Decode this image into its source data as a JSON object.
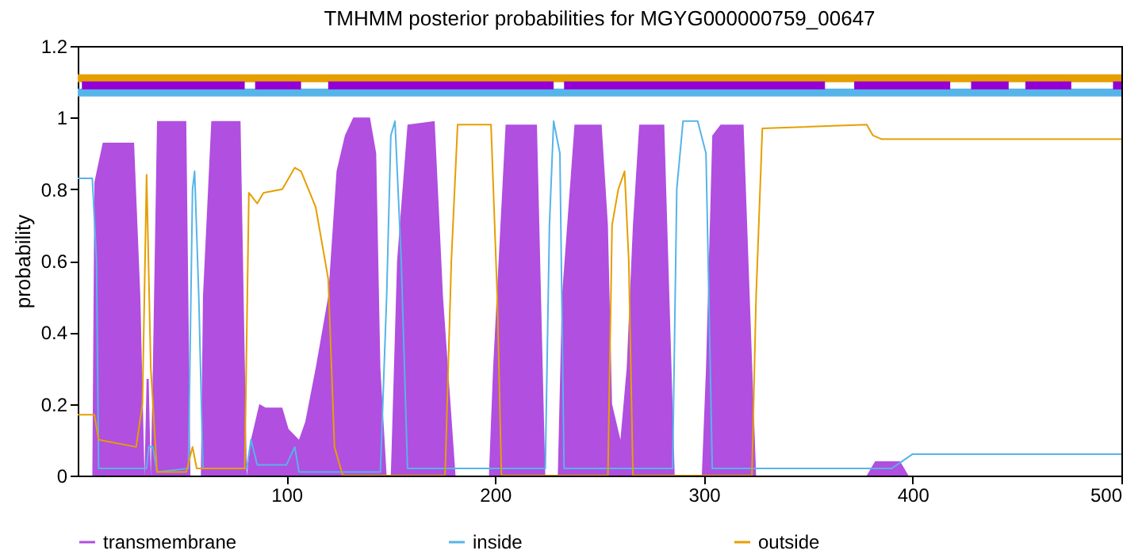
{
  "chart_data": {
    "type": "line",
    "title": "TMHMM posterior probabilities for MGYG000000759_00647",
    "ylabel": "probability",
    "xlim": [
      0,
      500
    ],
    "xticks": [
      100,
      200,
      300,
      400,
      500
    ],
    "ylim": [
      0,
      1.2
    ],
    "yticks": [
      0,
      0.2,
      0.4,
      0.6,
      0.8,
      1,
      1.2
    ],
    "grid": false,
    "legend": "bottom",
    "series": [
      {
        "name": "transmembrane",
        "type": "area",
        "color": "#b04fe0",
        "x": [
          0,
          7,
          8,
          12,
          27,
          30,
          32,
          33,
          34,
          35,
          36,
          38,
          52,
          54,
          59,
          60,
          64,
          78,
          81,
          83,
          87,
          90,
          98,
          101,
          106,
          109,
          114,
          120,
          124,
          128,
          132,
          140,
          143,
          145,
          148,
          150,
          153,
          158,
          171,
          175,
          181,
          197,
          199,
          205,
          220,
          224,
          230,
          232,
          238,
          251,
          254,
          256,
          260,
          263,
          266,
          269,
          281,
          286,
          299,
          301,
          304,
          308,
          319,
          325,
          378,
          382,
          394,
          398,
          500
        ],
        "values": [
          0,
          0,
          0.82,
          0.93,
          0.93,
          0.5,
          0,
          0.27,
          0.27,
          0,
          0.3,
          0.99,
          0.99,
          0,
          0,
          0.5,
          0.99,
          0.99,
          0,
          0.1,
          0.2,
          0.19,
          0.19,
          0.13,
          0.1,
          0.15,
          0.3,
          0.5,
          0.85,
          0.95,
          1,
          1,
          0.9,
          0.3,
          0,
          0,
          0.6,
          0.98,
          0.99,
          0.5,
          0,
          0,
          0.3,
          0.98,
          0.98,
          0,
          0,
          0.5,
          0.98,
          0.98,
          0.7,
          0.2,
          0.1,
          0.3,
          0.7,
          0.98,
          0.98,
          0,
          0,
          0.3,
          0.95,
          0.98,
          0.98,
          0,
          0,
          0.04,
          0.04,
          0,
          0
        ]
      },
      {
        "name": "inside",
        "color": "#56b4e9",
        "x": [
          0,
          7,
          9,
          10,
          33,
          34,
          36,
          38,
          53,
          55,
          56,
          58,
          60,
          81,
          83,
          86,
          100,
          104,
          106,
          145,
          148,
          150,
          152,
          155,
          158,
          224,
          226,
          228,
          231,
          233,
          285,
          287,
          290,
          297,
          301,
          304,
          390,
          395,
          400,
          500
        ],
        "values": [
          0.83,
          0.83,
          0.6,
          0.02,
          0.02,
          0.08,
          0.08,
          0.01,
          0.02,
          0.8,
          0.85,
          0.5,
          0.02,
          0.02,
          0.1,
          0.03,
          0.03,
          0.08,
          0.01,
          0.01,
          0.5,
          0.95,
          0.99,
          0.6,
          0.02,
          0.02,
          0.7,
          0.99,
          0.9,
          0.02,
          0.02,
          0.8,
          0.99,
          0.99,
          0.9,
          0.02,
          0.02,
          0.04,
          0.06,
          0.06
        ]
      },
      {
        "name": "outside",
        "color": "#e69f00",
        "x": [
          0,
          8,
          10,
          28,
          31,
          33,
          35,
          38,
          52,
          55,
          57,
          80,
          82,
          86,
          89,
          98,
          104,
          107,
          114,
          120,
          123,
          127,
          176,
          179,
          182,
          198,
          201,
          203,
          254,
          256,
          259,
          262,
          264,
          266,
          323,
          325,
          328,
          378,
          381,
          385,
          500
        ],
        "values": [
          0.17,
          0.17,
          0.1,
          0.08,
          0.2,
          0.84,
          0.3,
          0.01,
          0.01,
          0.08,
          0.02,
          0.02,
          0.79,
          0.76,
          0.79,
          0.8,
          0.86,
          0.85,
          0.75,
          0.55,
          0.08,
          0,
          0,
          0.6,
          0.98,
          0.98,
          0.5,
          0,
          0,
          0.7,
          0.8,
          0.85,
          0.6,
          0,
          0,
          0.5,
          0.97,
          0.98,
          0.95,
          0.94,
          0.94
        ]
      },
      {
        "color": "#e69f00",
        "x": [
          0,
          500
        ],
        "values": [
          1.11,
          1.11
        ]
      },
      {
        "color": "#56b4e9",
        "x": [
          0,
          500
        ],
        "values": [
          1.07,
          1.07
        ]
      },
      {
        "color": "#9400d3",
        "x": [
          2,
          80,
          81,
          85,
          107,
          108,
          120,
          228,
          229,
          233,
          358,
          359,
          372,
          395,
          396,
          418,
          419,
          428,
          446,
          447,
          454,
          476,
          477,
          496,
          500
        ],
        "values": [
          1.09,
          1.09,
          null,
          1.09,
          1.09,
          null,
          1.09,
          1.09,
          null,
          1.09,
          1.09,
          null,
          1.09,
          1.09,
          1.09,
          1.09,
          null,
          1.09,
          1.09,
          null,
          1.09,
          1.09,
          null,
          1.09,
          1.09
        ]
      }
    ]
  }
}
